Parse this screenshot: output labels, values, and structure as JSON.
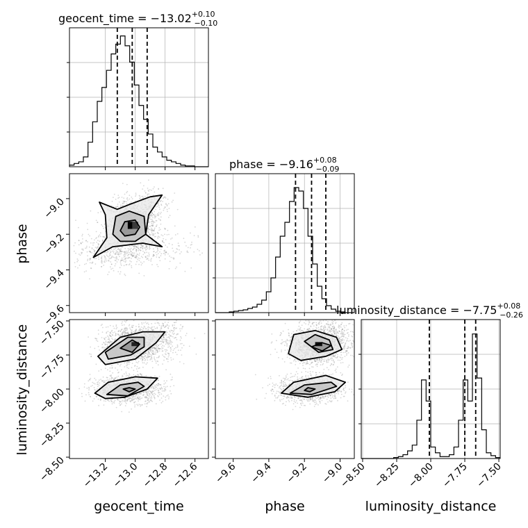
{
  "figure": {
    "colors": {
      "axes": "#000000",
      "grid": "#b0b0b0",
      "samples": "#8c8c8c",
      "hist": "#000000"
    }
  },
  "chart_data": [
    {
      "type": "histogram",
      "panel": "geocent_time-1d",
      "title": {
        "param": "geocent_time",
        "median": "−13.02",
        "plus": "+0.10",
        "minus": "−0.10"
      },
      "xlim": [
        -13.44,
        -12.51
      ],
      "bin_edges_start": -13.44,
      "bin_width": 0.031,
      "counts": [
        2,
        4,
        6,
        12,
        30,
        55,
        80,
        97,
        118,
        138,
        150,
        160,
        148,
        128,
        100,
        75,
        58,
        40,
        24,
        18,
        12,
        8,
        6,
        4,
        2,
        1,
        1,
        0,
        0,
        0
      ],
      "ymax": 170,
      "quantiles": [
        -13.12,
        -13.02,
        -12.92
      ],
      "grid": true
    },
    {
      "type": "histogram",
      "panel": "phase-1d",
      "title": {
        "param": "phase",
        "median": "−9.16",
        "plus": "+0.08",
        "minus": "−0.09"
      },
      "xlim": [
        -9.7,
        -8.92
      ],
      "bin_edges_start": -9.7,
      "bin_width": 0.026,
      "counts": [
        0,
        0,
        0,
        1,
        2,
        3,
        4,
        6,
        8,
        12,
        18,
        30,
        50,
        80,
        110,
        130,
        160,
        180,
        175,
        150,
        110,
        70,
        38,
        20,
        10,
        5,
        2,
        1,
        0,
        0
      ],
      "ymax": 200,
      "quantiles": [
        -9.25,
        -9.16,
        -9.08
      ],
      "grid": true
    },
    {
      "type": "histogram",
      "panel": "luminosity_distance-1d",
      "title": {
        "param": "luminosity_distance",
        "median": "−7.75",
        "plus": "+0.08",
        "minus": "−0.26"
      },
      "xlim": [
        -8.51,
        -7.49
      ],
      "bin_edges_start": -8.51,
      "bin_width": 0.034,
      "counts": [
        0,
        0,
        0,
        0,
        0,
        0,
        0,
        1,
        2,
        4,
        8,
        14,
        40,
        82,
        60,
        12,
        6,
        2,
        2,
        4,
        12,
        40,
        82,
        60,
        130,
        84,
        30,
        6,
        3,
        1
      ],
      "ymax": 145,
      "quantiles": [
        -8.01,
        -7.75,
        -7.67
      ],
      "grid": true
    },
    {
      "type": "scatter",
      "panel": "phase-vs-geocent_time",
      "x_param": "geocent_time",
      "y_param": "phase",
      "xlim": [
        -13.44,
        -12.51
      ],
      "ylim": [
        -9.64,
        -8.86
      ],
      "clusters": [
        {
          "cx": -13.02,
          "cy": -9.15,
          "sx": 0.08,
          "sy": 0.07,
          "n": 1400
        },
        {
          "cx": -13.0,
          "cy": -9.28,
          "sx": 0.2,
          "sy": 0.06,
          "n": 400
        },
        {
          "cx": -12.88,
          "cy": -9.02,
          "sx": 0.06,
          "sy": 0.05,
          "n": 150
        },
        {
          "cx": -13.2,
          "cy": -9.3,
          "sx": 0.1,
          "sy": 0.05,
          "n": 200
        }
      ],
      "contours": [
        {
          "level": 1,
          "points": [
            [
              -13.1,
              -9.18
            ],
            [
              -13.07,
              -9.13
            ],
            [
              -13.0,
              -9.12
            ],
            [
              -12.97,
              -9.16
            ],
            [
              -13.0,
              -9.2
            ],
            [
              -13.07,
              -9.21
            ]
          ]
        },
        {
          "level": 2,
          "points": [
            [
              -13.15,
              -9.2
            ],
            [
              -13.13,
              -9.1
            ],
            [
              -13.04,
              -9.07
            ],
            [
              -12.94,
              -9.1
            ],
            [
              -12.93,
              -9.2
            ],
            [
              -13.0,
              -9.24
            ],
            [
              -13.1,
              -9.24
            ]
          ]
        },
        {
          "level": 3,
          "points": [
            [
              -13.28,
              -9.33
            ],
            [
              -13.19,
              -9.22
            ],
            [
              -13.2,
              -9.09
            ],
            [
              -13.24,
              -9.02
            ],
            [
              -13.12,
              -9.06
            ],
            [
              -13.03,
              -9.03
            ],
            [
              -12.9,
              -8.99
            ],
            [
              -12.82,
              -8.98
            ],
            [
              -12.91,
              -9.09
            ],
            [
              -12.93,
              -9.2
            ],
            [
              -12.82,
              -9.27
            ],
            [
              -12.95,
              -9.25
            ],
            [
              -13.05,
              -9.26
            ],
            [
              -13.15,
              -9.27
            ]
          ]
        }
      ],
      "peak_blocks": [
        {
          "x": -13.03,
          "y": -9.15,
          "w": 0.04,
          "h": 0.04,
          "shade": "#000000"
        },
        {
          "x": -13.0,
          "y": -9.15,
          "w": 0.04,
          "h": 0.04,
          "shade": "#3a3a3a"
        }
      ]
    },
    {
      "type": "scatter",
      "panel": "luminosity_distance-vs-geocent_time",
      "x_param": "geocent_time",
      "y_param": "luminosity_distance",
      "xlim": [
        -13.44,
        -12.51
      ],
      "ylim": [
        -8.51,
        -7.49
      ],
      "clusters": [
        {
          "cx": -13.02,
          "cy": -7.68,
          "sx": 0.1,
          "sy": 0.07,
          "n": 1300
        },
        {
          "cx": -13.05,
          "cy": -8.0,
          "sx": 0.12,
          "sy": 0.05,
          "n": 1100
        },
        {
          "cx": -12.82,
          "cy": -7.62,
          "sx": 0.08,
          "sy": 0.08,
          "n": 300
        }
      ],
      "contours": [
        {
          "level": 1,
          "points": [
            [
              -13.1,
              -7.7
            ],
            [
              -13.02,
              -7.64
            ],
            [
              -12.97,
              -7.67
            ],
            [
              -13.02,
              -7.73
            ]
          ]
        },
        {
          "level": 2,
          "points": [
            [
              -13.2,
              -7.73
            ],
            [
              -13.05,
              -7.62
            ],
            [
              -12.94,
              -7.62
            ],
            [
              -12.94,
              -7.69
            ],
            [
              -13.03,
              -7.75
            ],
            [
              -13.18,
              -7.78
            ]
          ]
        },
        {
          "level": 3,
          "points": [
            [
              -13.25,
              -7.76
            ],
            [
              -13.1,
              -7.62
            ],
            [
              -12.95,
              -7.58
            ],
            [
              -12.8,
              -7.58
            ],
            [
              -12.86,
              -7.66
            ],
            [
              -13.0,
              -7.78
            ],
            [
              -13.2,
              -7.82
            ]
          ]
        },
        {
          "level": 1,
          "points": [
            [
              -13.08,
              -8.0
            ],
            [
              -13.04,
              -7.99
            ],
            [
              -13.0,
              -8.0
            ],
            [
              -13.04,
              -8.02
            ]
          ]
        },
        {
          "level": 2,
          "points": [
            [
              -13.19,
              -8.04
            ],
            [
              -13.1,
              -7.97
            ],
            [
              -12.98,
              -7.95
            ],
            [
              -12.94,
              -7.98
            ],
            [
              -13.05,
              -8.05
            ]
          ]
        },
        {
          "level": 3,
          "points": [
            [
              -13.27,
              -8.03
            ],
            [
              -13.18,
              -7.95
            ],
            [
              -13.0,
              -7.91
            ],
            [
              -12.85,
              -7.92
            ],
            [
              -12.92,
              -8.0
            ],
            [
              -13.07,
              -8.06
            ],
            [
              -13.2,
              -8.07
            ]
          ]
        }
      ],
      "peak_blocks": [
        {
          "x": -13.0,
          "y": -7.67,
          "w": 0.05,
          "h": 0.03,
          "shade": "#202020"
        }
      ]
    },
    {
      "type": "scatter",
      "panel": "luminosity_distance-vs-phase",
      "x_param": "phase",
      "y_param": "luminosity_distance",
      "xlim": [
        -9.7,
        -8.92
      ],
      "ylim": [
        -8.51,
        -7.49
      ],
      "clusters": [
        {
          "cx": -9.14,
          "cy": -7.68,
          "sx": 0.08,
          "sy": 0.07,
          "n": 1300
        },
        {
          "cx": -9.17,
          "cy": -8.0,
          "sx": 0.09,
          "sy": 0.05,
          "n": 1100
        },
        {
          "cx": -9.05,
          "cy": -7.62,
          "sx": 0.07,
          "sy": 0.08,
          "n": 300
        }
      ],
      "contours": [
        {
          "level": 1,
          "points": [
            [
              -9.16,
              -7.69
            ],
            [
              -9.1,
              -7.66
            ],
            [
              -9.05,
              -7.68
            ],
            [
              -9.1,
              -7.72
            ]
          ]
        },
        {
          "level": 2,
          "points": [
            [
              -9.2,
              -7.65
            ],
            [
              -9.14,
              -7.6
            ],
            [
              -9.06,
              -7.64
            ],
            [
              -9.04,
              -7.71
            ],
            [
              -9.12,
              -7.73
            ]
          ]
        },
        {
          "level": 3,
          "points": [
            [
              -9.29,
              -7.74
            ],
            [
              -9.26,
              -7.6
            ],
            [
              -9.14,
              -7.57
            ],
            [
              -9.02,
              -7.62
            ],
            [
              -8.99,
              -7.71
            ],
            [
              -9.08,
              -7.76
            ],
            [
              -9.22,
              -7.79
            ]
          ]
        },
        {
          "level": 1,
          "points": [
            [
              -9.2,
              -8.01
            ],
            [
              -9.18,
              -7.99
            ],
            [
              -9.14,
              -8.0
            ],
            [
              -9.17,
              -8.02
            ]
          ]
        },
        {
          "level": 2,
          "points": [
            [
              -9.28,
              -8.03
            ],
            [
              -9.2,
              -7.97
            ],
            [
              -9.05,
              -7.95
            ],
            [
              -9.02,
              -7.98
            ],
            [
              -9.16,
              -8.04
            ]
          ]
        },
        {
          "level": 3,
          "points": [
            [
              -9.33,
              -8.03
            ],
            [
              -9.26,
              -7.95
            ],
            [
              -9.08,
              -7.9
            ],
            [
              -8.97,
              -7.95
            ],
            [
              -9.03,
              -8.02
            ],
            [
              -9.18,
              -8.06
            ]
          ]
        }
      ],
      "peak_blocks": [
        {
          "x": -9.12,
          "y": -7.67,
          "w": 0.04,
          "h": 0.03,
          "shade": "#101010"
        }
      ]
    }
  ],
  "axes": {
    "geocent_time": {
      "label": "geocent_time",
      "ticks": [
        "−13.2",
        "−13.0",
        "−12.8",
        "−12.6"
      ],
      "tick_values": [
        -13.2,
        -13.0,
        -12.8,
        -12.6
      ]
    },
    "phase": {
      "label": "phase",
      "ticks": [
        "−9.6",
        "−9.4",
        "−9.2",
        "−9.0"
      ],
      "tick_values": [
        -9.6,
        -9.4,
        -9.2,
        -9.0
      ],
      "y_ticks": [
        "−9.0",
        "−9.2",
        "−9.4",
        "−9.6"
      ],
      "y_tick_values": [
        -9.0,
        -9.2,
        -9.4,
        -9.6
      ]
    },
    "luminosity_distance": {
      "label": "luminosity_distance",
      "ticks": [
        "−8.50",
        "−8.25",
        "−8.00",
        "−7.75",
        "−7.50"
      ],
      "tick_values": [
        -8.5,
        -8.25,
        -8.0,
        -7.75,
        -7.5
      ],
      "y_ticks": [
        "−7.50",
        "−7.75",
        "−8.00",
        "−8.25",
        "−8.50"
      ],
      "y_tick_values": [
        -7.5,
        -7.75,
        -8.0,
        -8.25,
        -8.5
      ]
    }
  }
}
